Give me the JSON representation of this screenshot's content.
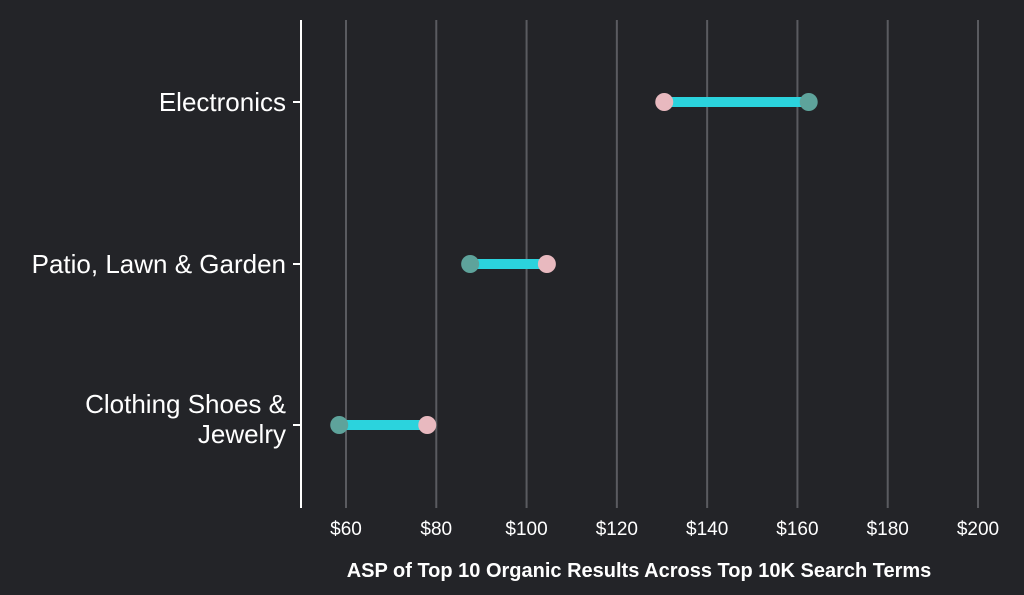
{
  "chart_data": {
    "type": "dumbbell",
    "title": "",
    "xlabel": "ASP of Top 10 Organic Results Across Top 10K Search Terms",
    "ylabel": "",
    "xlim": [
      50,
      205
    ],
    "x_ticks": [
      60,
      80,
      100,
      120,
      140,
      160,
      180,
      200
    ],
    "x_tick_labels": [
      "$60",
      "$80",
      "$100",
      "$120",
      "$140",
      "$160",
      "$180",
      "$200"
    ],
    "grid": true,
    "legend": "none",
    "categories": [
      {
        "label_lines": [
          "Electronics"
        ],
        "start": 130.5,
        "end": 162.5,
        "start_color": "#e8b9bf",
        "end_color": "#5ea39b"
      },
      {
        "label_lines": [
          "Patio, Lawn & Garden"
        ],
        "start": 87.5,
        "end": 104.5,
        "start_color": "#5ea39b",
        "end_color": "#e8b9bf"
      },
      {
        "label_lines": [
          "Clothing Shoes &",
          "Jewelry"
        ],
        "start": 58.5,
        "end": 78.0,
        "start_color": "#5ea39b",
        "end_color": "#e8b9bf"
      }
    ],
    "colors": {
      "background": "#232428",
      "connector": "#2bd3dd",
      "grid": "#5a5b60",
      "axis": "#ffffff",
      "text": "#ffffff"
    }
  }
}
